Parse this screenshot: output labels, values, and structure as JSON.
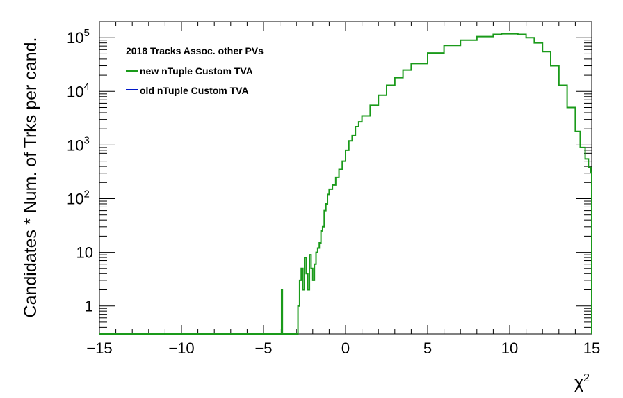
{
  "chart_data": {
    "type": "line",
    "title": "",
    "xlabel": "χ²",
    "ylabel": "Candidates * Num. of Trks per cand.",
    "xlim": [
      -15,
      15
    ],
    "ylim": [
      0.3,
      200000
    ],
    "yscale": "log",
    "grid": false,
    "legend_position": "top-left",
    "x_ticks": [
      "−15",
      "−10",
      "−5",
      "0",
      "5",
      "10",
      "15"
    ],
    "y_ticks": [
      {
        "base": "10",
        "exp": "5"
      },
      {
        "base": "10",
        "exp": "4"
      },
      {
        "base": "10",
        "exp": "3"
      },
      {
        "base": "10",
        "exp": "2"
      },
      {
        "base": "10",
        "exp": ""
      },
      {
        "base": "1",
        "exp": ""
      }
    ],
    "legend": {
      "header": "2018 Tracks Assoc. other PVs",
      "entries": [
        {
          "label": "new nTuple Custom TVA",
          "color": "#1a9a1a"
        },
        {
          "label": "old nTuple Custom TVA",
          "color": "#0018c8"
        }
      ]
    },
    "series": [
      {
        "name": "new nTuple Custom TVA",
        "color": "#1a9a1a",
        "x": [
          -15,
          -4,
          -3.9,
          -3.85,
          -3.8,
          -2.9,
          -2.8,
          -2.7,
          -2.6,
          -2.5,
          -2.4,
          -2.3,
          -2.2,
          -2.1,
          -2.0,
          -1.9,
          -1.8,
          -1.7,
          -1.6,
          -1.5,
          -1.4,
          -1.3,
          -1.2,
          -1.1,
          -1.0,
          -0.8,
          -0.6,
          -0.4,
          -0.2,
          0.0,
          0.2,
          0.4,
          0.6,
          0.8,
          1.0,
          1.5,
          2.0,
          2.5,
          3.0,
          3.5,
          4.0,
          5.0,
          6.0,
          7.0,
          8.0,
          9.0,
          9.5,
          10.0,
          10.5,
          11.0,
          11.5,
          12.0,
          12.5,
          13.0,
          13.5,
          14.0,
          14.3,
          14.6,
          14.8,
          14.95
        ],
        "y": [
          0,
          0,
          2,
          0,
          0,
          1,
          3,
          5,
          2,
          8,
          4,
          2,
          9,
          5,
          3,
          6,
          10,
          12,
          15,
          25,
          30,
          60,
          80,
          120,
          150,
          180,
          250,
          350,
          500,
          800,
          1200,
          1500,
          2200,
          2700,
          3500,
          5500,
          8500,
          13000,
          18000,
          25000,
          33000,
          52000,
          72000,
          90000,
          105000,
          115000,
          118000,
          118000,
          115000,
          100000,
          80000,
          55000,
          30000,
          13000,
          5000,
          1800,
          900,
          550,
          380,
          310
        ]
      },
      {
        "name": "old nTuple Custom TVA",
        "color": "#0018c8",
        "x": [],
        "y": []
      }
    ]
  }
}
